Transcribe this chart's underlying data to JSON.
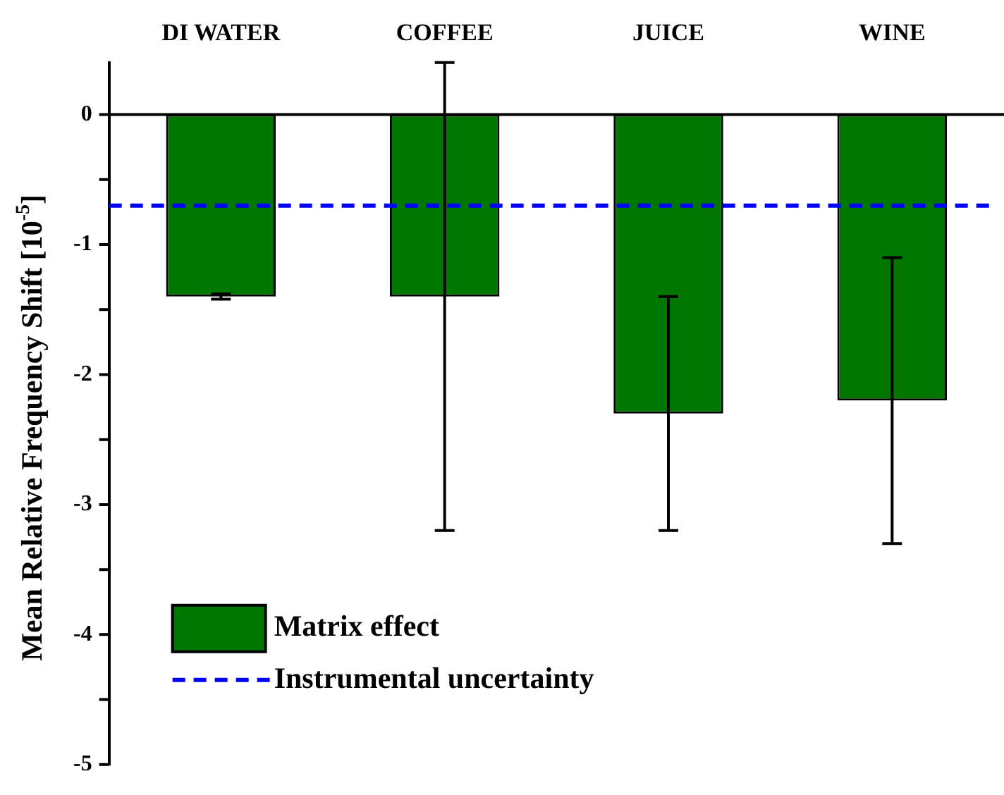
{
  "chart_data": {
    "type": "bar",
    "ylabel": "Mean Relative Frequency Shift [10$^{-5}$]",
    "categories": [
      "DI WATER",
      "COFFEE",
      "JUICE",
      "WINE"
    ],
    "series": [
      {
        "name": "Matrix effect",
        "color": "#007700",
        "values": [
          -1.4,
          -1.4,
          -2.3,
          -2.2
        ],
        "errors": [
          0.02,
          1.8,
          0.9,
          1.1
        ]
      }
    ],
    "ylim": [
      -5,
      0.4
    ],
    "yticks": [
      -5,
      {
        "value": -4.5,
        "label": null
      },
      -4,
      {
        "value": -3.5,
        "label": null
      },
      -3,
      {
        "value": -2.5,
        "label": null
      },
      -2,
      {
        "value": -1.5,
        "label": null
      },
      -1,
      {
        "value": -0.5,
        "label": null
      },
      0
    ],
    "ref_lines": [
      {
        "axis": "y",
        "value": 0,
        "color": "#000000",
        "line_style": "solid"
      },
      {
        "axis": "y",
        "value": -0.7,
        "label": "Instrumental uncertainty",
        "color": "#0000ff",
        "line_style": "dashed"
      }
    ],
    "grid": false,
    "legend": "bottom left"
  }
}
